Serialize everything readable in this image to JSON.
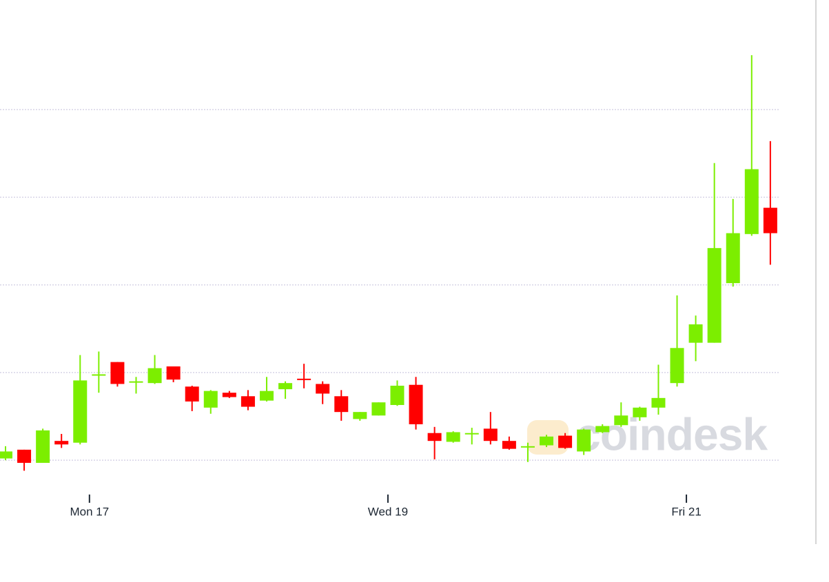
{
  "chart_data": {
    "type": "candlestick",
    "watermark": "coindesk",
    "categories": [
      null,
      null,
      null,
      null,
      null,
      null,
      null,
      null,
      null,
      null,
      null,
      null,
      null,
      null,
      null,
      null,
      null,
      null,
      null,
      null,
      null,
      null,
      null,
      null,
      null,
      null,
      null,
      null,
      null,
      null,
      null,
      null,
      null,
      null,
      null,
      null,
      null,
      null,
      null,
      null,
      null,
      null
    ],
    "open": [
      0.02,
      0.12,
      -0.03,
      0.22,
      0.2,
      0.97,
      1.12,
      0.89,
      0.88,
      1.07,
      0.84,
      0.6,
      0.77,
      0.73,
      0.68,
      0.81,
      0.93,
      0.87,
      0.73,
      0.47,
      0.51,
      0.63,
      0.86,
      0.31,
      0.21,
      0.3,
      0.36,
      0.22,
      0.15,
      0.17,
      0.28,
      0.1,
      0.32,
      0.4,
      0.49,
      0.6,
      0.88,
      1.34,
      1.34,
      2.02,
      2.58,
      2.88
    ],
    "high": [
      0.16,
      0.12,
      0.36,
      0.3,
      1.2,
      1.24,
      1.12,
      0.95,
      1.2,
      1.07,
      0.85,
      0.8,
      0.79,
      0.8,
      0.95,
      0.9,
      1.1,
      0.9,
      0.8,
      0.55,
      0.66,
      0.91,
      0.95,
      0.38,
      0.33,
      0.37,
      0.55,
      0.27,
      0.2,
      0.29,
      0.31,
      0.36,
      0.41,
      0.66,
      0.61,
      1.09,
      1.88,
      1.65,
      3.39,
      2.98,
      4.62,
      3.64
    ],
    "low": [
      0.0,
      -0.12,
      -0.03,
      0.14,
      0.18,
      0.77,
      0.84,
      0.76,
      0.87,
      0.89,
      0.56,
      0.53,
      0.71,
      0.57,
      0.67,
      0.7,
      0.82,
      0.64,
      0.45,
      0.45,
      0.51,
      0.62,
      0.35,
      0.01,
      0.2,
      0.18,
      0.18,
      0.12,
      -0.02,
      0.15,
      0.13,
      0.06,
      0.31,
      0.38,
      0.45,
      0.52,
      0.84,
      1.13,
      1.34,
      1.98,
      2.56,
      2.23
    ],
    "close": [
      0.1,
      -0.03,
      0.34,
      0.18,
      0.91,
      0.98,
      0.87,
      0.9,
      1.05,
      0.92,
      0.67,
      0.79,
      0.72,
      0.61,
      0.79,
      0.88,
      0.92,
      0.76,
      0.55,
      0.55,
      0.66,
      0.85,
      0.41,
      0.22,
      0.32,
      0.31,
      0.22,
      0.13,
      0.16,
      0.27,
      0.14,
      0.35,
      0.39,
      0.51,
      0.6,
      0.71,
      1.28,
      1.55,
      2.42,
      2.59,
      3.32,
      2.59
    ],
    "up_color": "#7cee00",
    "down_color": "#ff0000",
    "ylim": [
      -0.25,
      5.25
    ],
    "yticks": [
      0,
      1,
      2,
      3,
      4
    ],
    "grid": true,
    "xticks": [
      {
        "value": 4.5,
        "label": "Mon 17"
      },
      {
        "value": 20.5,
        "label": "Wed 19"
      },
      {
        "value": 36.5,
        "label": "Fri 21"
      }
    ]
  }
}
